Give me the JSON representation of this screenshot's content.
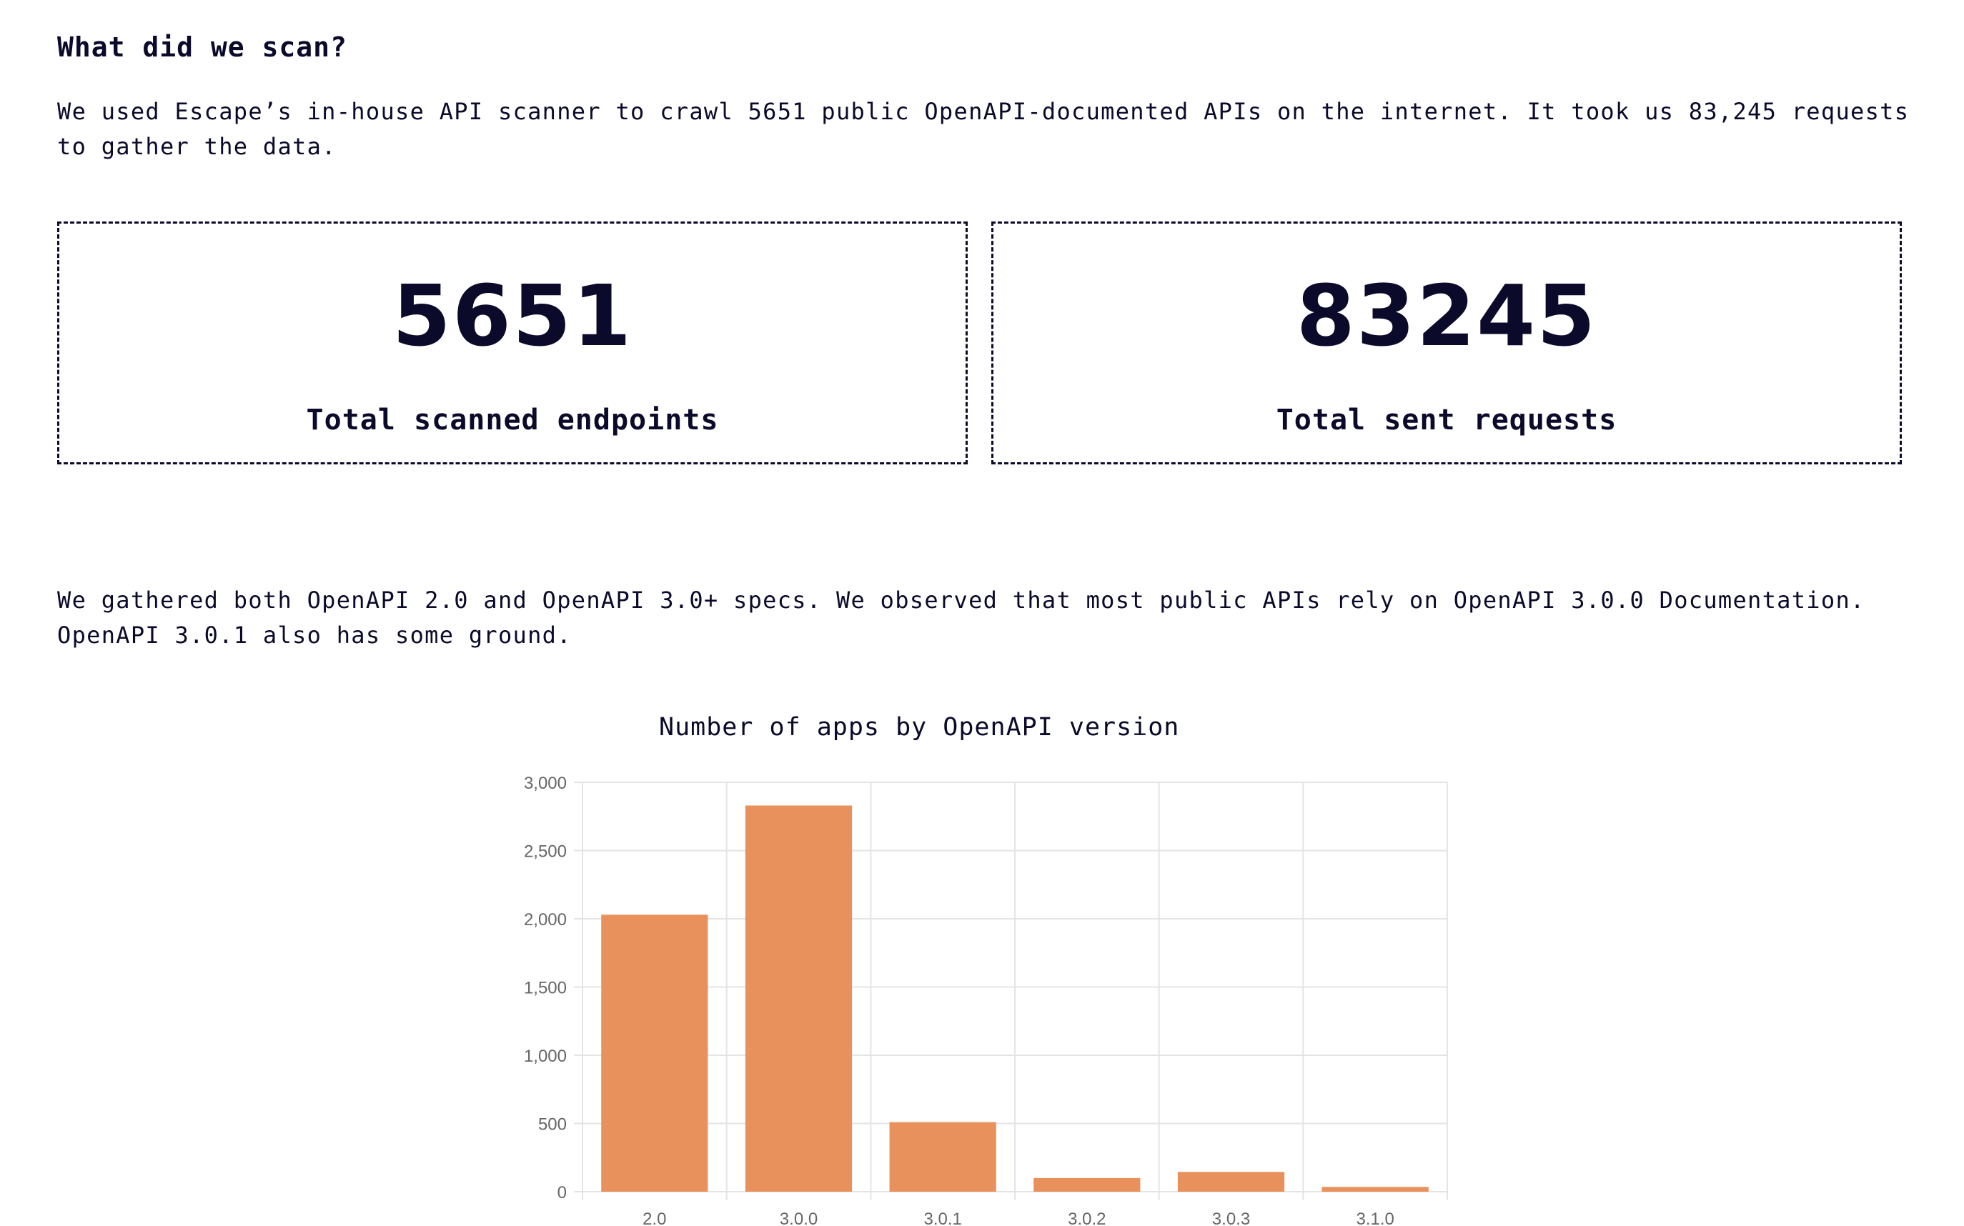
{
  "scan": {
    "title": "What did we scan?",
    "intro": "We used Escape’s in-house API scanner to crawl 5651 public OpenAPI-documented APIs on the internet. It took us 83,245 requests to gather the data."
  },
  "stats": {
    "endpoints": {
      "value": "5651",
      "label": "Total scanned endpoints"
    },
    "requests": {
      "value": "83245",
      "label": "Total sent requests"
    }
  },
  "versions": {
    "intro": "We gathered both OpenAPI 2.0 and OpenAPI 3.0+ specs. We observed that most public APIs rely on OpenAPI 3.0.0 Documentation. OpenAPI 3.0.1 also has some ground."
  },
  "chart_data": {
    "type": "bar",
    "title": "Number of apps by OpenAPI version",
    "categories": [
      "2.0",
      "3.0.0",
      "3.0.1",
      "3.0.2",
      "3.0.3",
      "3.1.0"
    ],
    "values": [
      2030,
      2830,
      510,
      100,
      145,
      35
    ],
    "ylim": [
      0,
      3000
    ],
    "yticks": [
      0,
      500,
      1000,
      1500,
      2000,
      2500,
      3000
    ],
    "ytick_labels": [
      "0",
      "500",
      "1,000",
      "1,500",
      "2,000",
      "2,500",
      "3,000"
    ],
    "xlabel": "",
    "ylabel": "",
    "grid": true,
    "bar_color": "#e9915c",
    "grid_color": "#e4e4e4"
  }
}
